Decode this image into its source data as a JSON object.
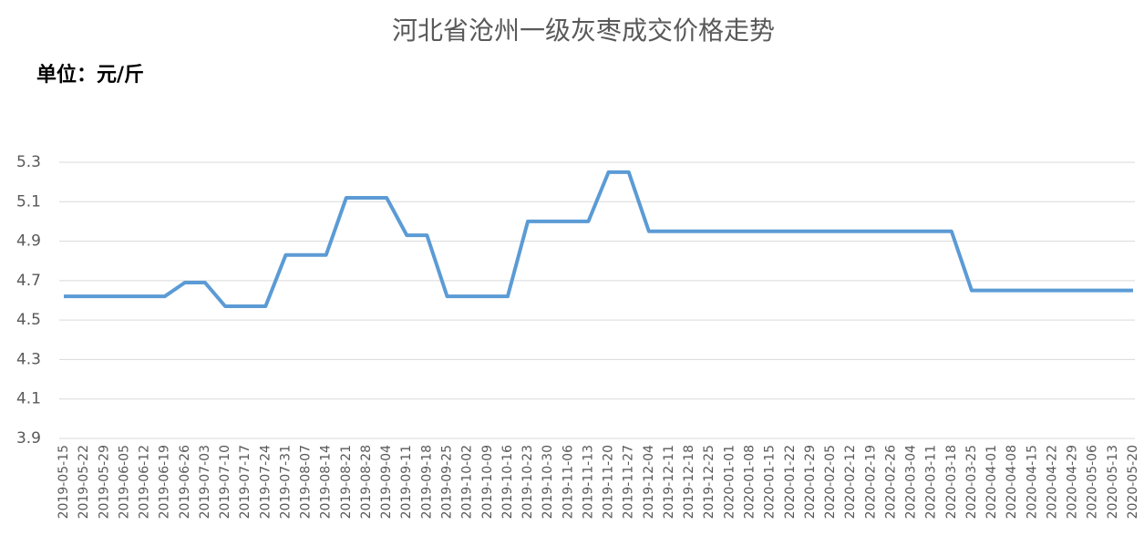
{
  "chart_data": {
    "type": "line",
    "title": "河北省沧州一级灰枣成交价格走势",
    "subtitle": "单位：元/斤",
    "categories": [
      "2019-05-15",
      "2019-05-22",
      "2019-05-29",
      "2019-06-05",
      "2019-06-12",
      "2019-06-19",
      "2019-06-26",
      "2019-07-03",
      "2019-07-10",
      "2019-07-17",
      "2019-07-24",
      "2019-07-31",
      "2019-08-07",
      "2019-08-14",
      "2019-08-21",
      "2019-08-28",
      "2019-09-04",
      "2019-09-11",
      "2019-09-18",
      "2019-09-25",
      "2019-10-02",
      "2019-10-09",
      "2019-10-16",
      "2019-10-23",
      "2019-10-30",
      "2019-11-06",
      "2019-11-13",
      "2019-11-20",
      "2019-11-27",
      "2019-12-04",
      "2019-12-11",
      "2019-12-18",
      "2019-12-25",
      "2020-01-01",
      "2020-01-08",
      "2020-01-15",
      "2020-01-22",
      "2020-01-29",
      "2020-02-05",
      "2020-02-12",
      "2020-02-19",
      "2020-02-26",
      "2020-03-04",
      "2020-03-11",
      "2020-03-18",
      "2020-03-25",
      "2020-04-01",
      "2020-04-08",
      "2020-04-15",
      "2020-04-22",
      "2020-04-29",
      "2020-05-06",
      "2020-05-13",
      "2020-05-20"
    ],
    "series": [
      {
        "color": "#5b9bd5",
        "values": [
          4.62,
          4.62,
          4.62,
          4.62,
          4.62,
          4.62,
          4.69,
          4.69,
          4.57,
          4.57,
          4.57,
          4.83,
          4.83,
          4.83,
          5.12,
          5.12,
          5.12,
          4.93,
          4.93,
          4.62,
          4.62,
          4.62,
          4.62,
          5.0,
          5.0,
          5.0,
          5.0,
          5.25,
          5.25,
          4.95,
          4.95,
          4.95,
          4.95,
          4.95,
          4.95,
          4.95,
          4.95,
          4.95,
          4.95,
          4.95,
          4.95,
          4.95,
          4.95,
          4.95,
          4.95,
          4.65,
          4.65,
          4.65,
          4.65,
          4.65,
          4.65,
          4.65,
          4.65,
          4.65
        ]
      }
    ],
    "ylim": [
      3.9,
      5.3
    ],
    "yticks": [
      3.9,
      4.1,
      4.3,
      4.5,
      4.7,
      4.9,
      5.1,
      5.3
    ],
    "grid": true
  }
}
